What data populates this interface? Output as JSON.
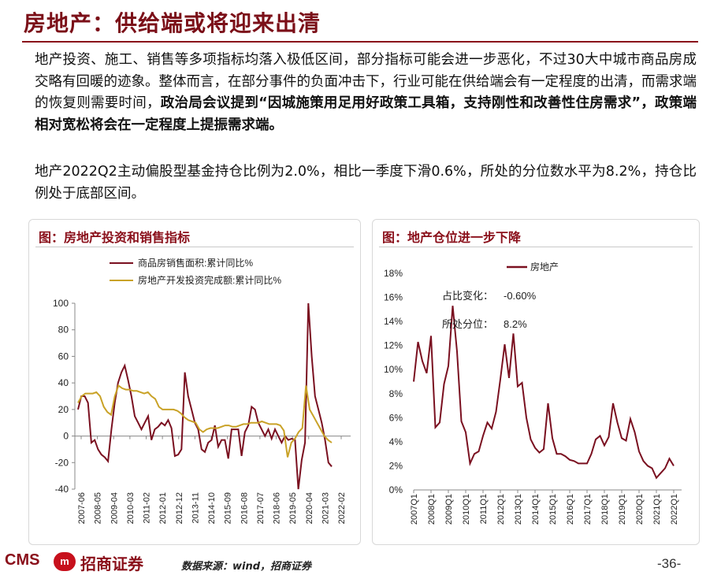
{
  "page": {
    "title": "房地产：供给端或将迎来出清",
    "para1_normal": "地产投资、施工、销售等多项指标均落入极低区间，部分指标可能会进一步恶化，不过30大中城市商品房成交略有回暖的迹象。整体而言，在部分事件的负面冲击下，行业可能在供给端会有一定程度的出清，而需求端的恢复则需要时间，",
    "para1_bold": "政治局会议提到“因城施策用足用好政策工具箱，支持刚性和改善性住房需求”，政策端相对宽松将会在一定程度上提振需求端。",
    "para2": "地产2022Q2主动偏股型基金持仓比例为2.0%，相比一季度下滑0.6%，所处的分位数水平为8.2%，持仓比例处于底部区间。",
    "page_number": "-36-"
  },
  "footer": {
    "logo_text": "CMS",
    "logo_mark": "m",
    "logo_cn": "招商证券",
    "source": "数据来源：wind，招商证券"
  },
  "chart_data": [
    {
      "type": "line",
      "title": "图：房地产投资和销售指标",
      "ylim": [
        -40,
        100
      ],
      "yticks": [
        "100",
        "80",
        "60",
        "40",
        "20",
        "0",
        "-20",
        "-40"
      ],
      "xticks": [
        "2007-06",
        "2008-05",
        "2009-04",
        "2010-03",
        "2011-02",
        "2012-01",
        "2012-12",
        "2013-11",
        "2014-10",
        "2015-09",
        "2016-08",
        "2017-07",
        "2018-06",
        "2019-05",
        "2020-04",
        "2021-03",
        "2022-02"
      ],
      "legend_position": "top-left",
      "colors": {
        "sales": "#7a1020",
        "invest": "#c9a227"
      },
      "series": [
        {
          "name": "商品房销售面积:累计同比%",
          "values": [
            20,
            30,
            30,
            25,
            -5,
            -3,
            -10,
            -14,
            -16,
            -19,
            5,
            25,
            40,
            48,
            53,
            42,
            30,
            15,
            10,
            5,
            10,
            15,
            -3,
            5,
            7,
            10,
            8,
            12,
            6,
            -15,
            -14,
            -10,
            48,
            30,
            20,
            10,
            5,
            -10,
            -12,
            -5,
            -3,
            8,
            -8,
            -3,
            -3,
            -17,
            5,
            5,
            5,
            -15,
            3,
            8,
            22,
            20,
            10,
            5,
            0,
            5,
            -2,
            5,
            0,
            -5,
            0,
            -3,
            -2,
            -3,
            -40,
            -18,
            -5,
            100,
            60,
            30,
            20,
            10,
            -3,
            -20,
            -23
          ]
        },
        {
          "name": "房地产开发投资完成额:累计同比%",
          "values": [
            25,
            30,
            32,
            32,
            32,
            33,
            30,
            22,
            18,
            16,
            30,
            38,
            36,
            35,
            35,
            34,
            34,
            33,
            32,
            33,
            30,
            28,
            22,
            20,
            20,
            20,
            20,
            19,
            17,
            14,
            12,
            11,
            10,
            5,
            3,
            5,
            6,
            6,
            6,
            7,
            8,
            8,
            7,
            7,
            8,
            9,
            9,
            10,
            10,
            10,
            11,
            10,
            9,
            9,
            9,
            8,
            4,
            -16,
            -5,
            -2,
            3,
            6,
            38,
            20,
            15,
            10,
            5,
            0,
            -3,
            -5
          ]
        }
      ]
    },
    {
      "type": "line",
      "title": "图：地产仓位进一步下降",
      "ylim": [
        0,
        18
      ],
      "yticks": [
        "18%",
        "16%",
        "14%",
        "12%",
        "10%",
        "8%",
        "6%",
        "4%",
        "2%",
        "0%"
      ],
      "xticks": [
        "2007Q1",
        "2008Q1",
        "2009Q1",
        "2010Q1",
        "2011Q1",
        "2012Q1",
        "2013Q1",
        "2014Q1",
        "2015Q1",
        "2016Q1",
        "2017Q1",
        "2018Q1",
        "2019Q1",
        "2020Q1",
        "2021Q1",
        "2022Q1"
      ],
      "legend_position": "top-left",
      "color": "#7a1020",
      "annotation_change_label": "占比变化：",
      "annotation_change_value": "-0.60%",
      "annotation_pct_label": "所处分位：",
      "annotation_pct_value": "8.2%",
      "series": [
        {
          "name": "房地产",
          "values": [
            9.0,
            12.3,
            10.7,
            9.7,
            12.8,
            5.2,
            5.6,
            8.8,
            10.3,
            15.3,
            11.5,
            5.7,
            4.8,
            2.2,
            3.0,
            3.2,
            4.5,
            5.6,
            5.1,
            6.5,
            9.2,
            12.1,
            9.3,
            13.0,
            8.6,
            8.9,
            6.0,
            4.2,
            3.5,
            3.1,
            3.4,
            7.2,
            4.3,
            3.0,
            3.0,
            2.8,
            2.5,
            2.4,
            2.2,
            2.2,
            2.2,
            3.0,
            4.2,
            4.5,
            3.7,
            4.4,
            7.2,
            5.6,
            4.3,
            4.1,
            5.9,
            4.8,
            3.2,
            2.4,
            2.0,
            1.8,
            1.0,
            1.4,
            1.8,
            2.6,
            2.0
          ]
        }
      ]
    }
  ]
}
